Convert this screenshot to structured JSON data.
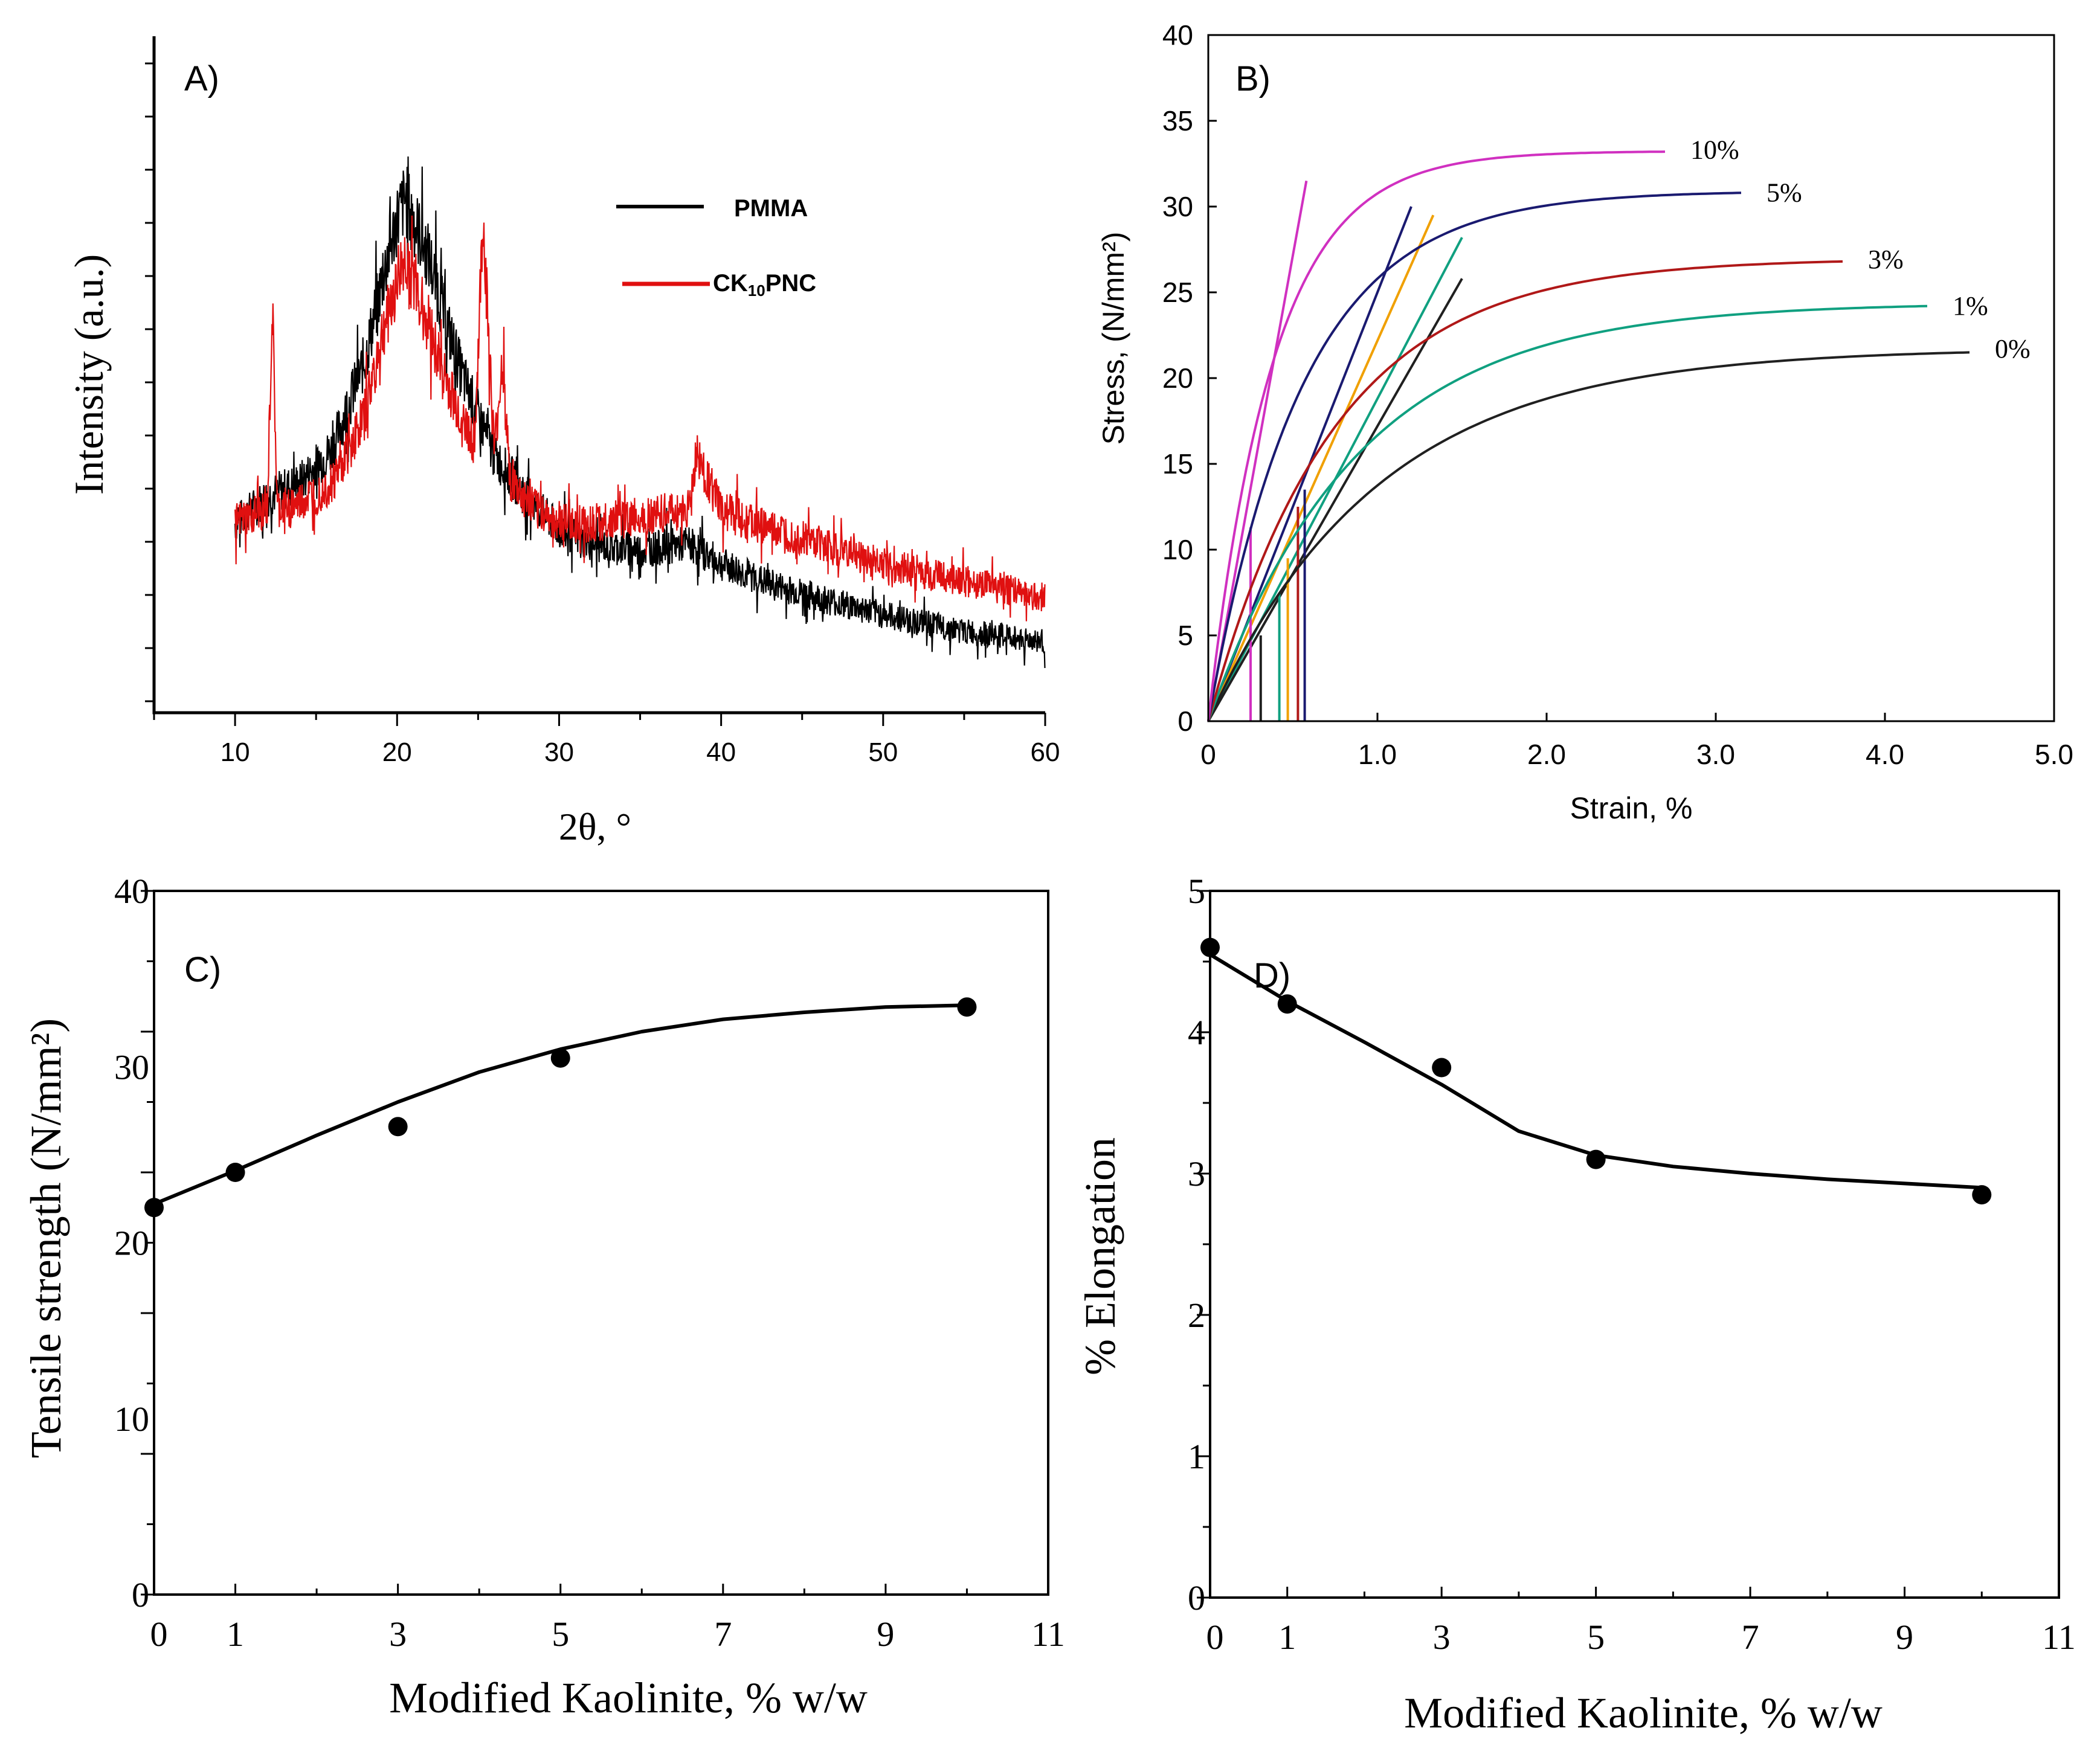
{
  "colors": {
    "axis": "#000000",
    "pmma": "#000000",
    "pnc": "#e01010",
    "s0": "#202020",
    "s1": "#10a080",
    "s3": "#b01818",
    "s5": "#1a1a70",
    "s10": "#d030c0",
    "orange": "#f0a000",
    "fit": "#000000"
  },
  "chart_data": [
    {
      "id": "A",
      "type": "line",
      "panel_label": "A)",
      "xlabel": "2θ, °",
      "ylabel": "Intensity (a.u.)",
      "xlim": [
        5,
        60
      ],
      "xticks": [
        "10",
        "20",
        "30",
        "40",
        "50",
        "60"
      ],
      "xtick_values": [
        10,
        20,
        30,
        40,
        50,
        60
      ],
      "legend": [
        {
          "name": "PMMA",
          "color": "#000000"
        },
        {
          "name": "CK",
          "sub": "10",
          "suffix": "PNC",
          "color": "#e01010"
        }
      ],
      "series": [
        {
          "name": "PMMA",
          "x": [
            10,
            12,
            14,
            16,
            18,
            19,
            20,
            20.5,
            21,
            22,
            23,
            24,
            26,
            28,
            30,
            32,
            35,
            38,
            40,
            43,
            46,
            50,
            55,
            60
          ],
          "y": [
            28,
            32,
            34,
            39,
            52,
            63,
            73,
            76,
            73,
            67,
            58,
            50,
            38,
            32,
            27,
            25,
            24,
            25,
            22,
            19,
            17,
            14.5,
            12,
            10.5
          ]
        },
        {
          "name": "CK10PNC",
          "x": [
            10,
            12,
            12.3,
            12.6,
            14,
            16,
            18,
            19,
            20,
            20.5,
            21,
            22,
            23,
            24,
            24.8,
            25.3,
            26,
            26.5,
            27,
            28,
            30,
            32,
            35,
            38,
            38.5,
            40,
            43,
            46,
            50,
            55,
            60
          ],
          "y": [
            28,
            30,
            60,
            30,
            31,
            34,
            44,
            55,
            64,
            67,
            64,
            57,
            49,
            43,
            40,
            73,
            38,
            52,
            34,
            31,
            28,
            28,
            29,
            30,
            38,
            30,
            27,
            25,
            22,
            19.5,
            17
          ]
        }
      ]
    },
    {
      "id": "B",
      "type": "line",
      "panel_label": "B)",
      "xlabel": "Strain, %",
      "ylabel": "Stress, (N/mm²)",
      "xlim": [
        0,
        5
      ],
      "ylim": [
        0,
        40
      ],
      "xticks": [
        "0",
        "1.0",
        "2.0",
        "3.0",
        "4.0",
        "5.0"
      ],
      "xtick_values": [
        0,
        1,
        2,
        3,
        4,
        5
      ],
      "yticks": [
        "0",
        "5",
        "10",
        "15",
        "20",
        "25",
        "30",
        "35",
        "40"
      ],
      "ytick_values": [
        0,
        5,
        10,
        15,
        20,
        25,
        30,
        35,
        40
      ],
      "curve_labels": [
        "10%",
        "5%",
        "3%",
        "1%",
        "0%"
      ],
      "series": [
        {
          "name": "0%",
          "color": "#202020",
          "strain_max": 4.5,
          "stress_max": 21.5,
          "k": 1.0,
          "label": "0%",
          "label_at": [
            4.65,
            21.2
          ]
        },
        {
          "name": "1%",
          "color": "#10a080",
          "strain_max": 4.25,
          "stress_max": 24.2,
          "k": 1.15,
          "label": "1%",
          "label_at": [
            4.4,
            23.7
          ]
        },
        {
          "name": "3%",
          "color": "#b01818",
          "strain_max": 3.75,
          "stress_max": 26.8,
          "k": 1.35,
          "label": "3%",
          "label_at": [
            3.9,
            26.4
          ]
        },
        {
          "name": "5%",
          "color": "#1a1a70",
          "strain_max": 3.15,
          "stress_max": 30.8,
          "k": 1.8,
          "label": "5%",
          "label_at": [
            3.3,
            30.3
          ]
        },
        {
          "name": "10%",
          "color": "#d030c0",
          "strain_max": 2.7,
          "stress_max": 33.2,
          "k": 2.6,
          "label": "10%",
          "label_at": [
            2.85,
            32.8
          ]
        }
      ],
      "straight_lines": [
        {
          "color": "#d030c0",
          "x": [
            0,
            0.58
          ],
          "y": [
            0,
            31.5
          ]
        },
        {
          "color": "#1a1a70",
          "x": [
            0,
            1.2
          ],
          "y": [
            0,
            30
          ]
        },
        {
          "color": "#f0a000",
          "x": [
            0,
            1.33
          ],
          "y": [
            0,
            29.5
          ]
        },
        {
          "color": "#10a080",
          "x": [
            0,
            1.5
          ],
          "y": [
            0,
            28.2
          ]
        },
        {
          "color": "#202020",
          "x": [
            0,
            1.5
          ],
          "y": [
            0,
            25.8
          ]
        }
      ],
      "vertical_marks": [
        {
          "color": "#d030c0",
          "x": 0.25,
          "y": 11.3
        },
        {
          "color": "#202020",
          "x": 0.31,
          "y": 5.0
        },
        {
          "color": "#10a080",
          "x": 0.42,
          "y": 7.5
        },
        {
          "color": "#f0a000",
          "x": 0.47,
          "y": 9.5
        },
        {
          "color": "#b01818",
          "x": 0.53,
          "y": 12.5
        },
        {
          "color": "#1a1a70",
          "x": 0.57,
          "y": 13.5
        }
      ]
    },
    {
      "id": "C",
      "type": "scatter",
      "panel_label": "C)",
      "xlabel": "Modified Kaolinite, % w/w",
      "ylabel": "Tensile strength (N/mm²)",
      "xlim": [
        0,
        11
      ],
      "ylim": [
        0,
        40
      ],
      "xticks": [
        "0",
        "1",
        "3",
        "5",
        "7",
        "9",
        "11"
      ],
      "xtick_values": [
        0,
        1,
        3,
        5,
        7,
        9,
        11
      ],
      "yticks": [
        "0",
        "10",
        "20",
        "30",
        "40"
      ],
      "ytick_values": [
        0,
        10,
        20,
        30,
        40
      ],
      "points": {
        "x": [
          0,
          1,
          3,
          5,
          10
        ],
        "y": [
          22,
          24,
          26.6,
          30.5,
          33.4
        ]
      },
      "fit": {
        "x": [
          0,
          1,
          2,
          3,
          4,
          5,
          6,
          7,
          8,
          9,
          10
        ],
        "y": [
          22.2,
          24.1,
          26.1,
          28,
          29.7,
          31,
          32,
          32.7,
          33.1,
          33.4,
          33.5
        ]
      }
    },
    {
      "id": "D",
      "type": "scatter",
      "panel_label": "D)",
      "xlabel": "Modified Kaolinite, % w/w",
      "ylabel": "% Elongation",
      "xlim": [
        0,
        11
      ],
      "ylim": [
        0,
        5
      ],
      "xticks": [
        "0",
        "1",
        "3",
        "5",
        "7",
        "9",
        "11"
      ],
      "xtick_values": [
        0,
        1,
        3,
        5,
        7,
        9,
        11
      ],
      "yticks": [
        "0",
        "1",
        "2",
        "3",
        "4",
        "5"
      ],
      "ytick_values": [
        0,
        1,
        2,
        3,
        4,
        5
      ],
      "points": {
        "x": [
          0,
          1,
          3,
          5,
          10
        ],
        "y": [
          4.6,
          4.2,
          3.75,
          3.1,
          2.85
        ]
      },
      "fit": {
        "x": [
          0,
          1,
          2,
          3,
          4,
          5,
          6,
          7,
          8,
          9,
          10
        ],
        "y": [
          4.55,
          4.22,
          3.93,
          3.63,
          3.3,
          3.13,
          3.05,
          3.0,
          2.96,
          2.93,
          2.9
        ]
      }
    }
  ]
}
